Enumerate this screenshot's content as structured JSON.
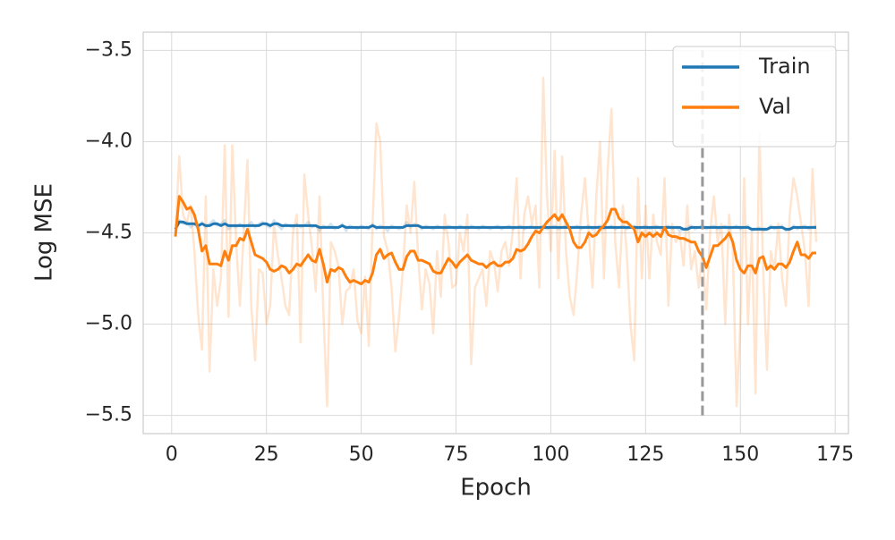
{
  "chart_data": {
    "type": "line",
    "xlabel": "Epoch",
    "ylabel": "Log MSE",
    "xlim": [
      -7.5,
      178.5
    ],
    "ylim": [
      -5.6,
      -3.4
    ],
    "xticks": [
      0,
      25,
      50,
      75,
      100,
      125,
      150,
      175
    ],
    "yticks": [
      {
        "value": -5.5,
        "label": "−5.5"
      },
      {
        "value": -5.0,
        "label": "−5.0"
      },
      {
        "value": -4.5,
        "label": "−4.5"
      },
      {
        "value": -4.0,
        "label": "−4.0"
      },
      {
        "value": -3.5,
        "label": "−3.5"
      }
    ],
    "grid": true,
    "legend": "upper right",
    "raw_alpha": 0.2,
    "vline": {
      "x": 140,
      "ymin": -5.5,
      "ymax": -3.5,
      "color": "#999999"
    },
    "x": [
      1,
      2,
      3,
      4,
      5,
      6,
      7,
      8,
      9,
      10,
      11,
      12,
      13,
      14,
      15,
      16,
      17,
      18,
      19,
      20,
      21,
      22,
      23,
      24,
      25,
      26,
      27,
      28,
      29,
      30,
      31,
      32,
      33,
      34,
      35,
      36,
      37,
      38,
      39,
      40,
      41,
      42,
      43,
      44,
      45,
      46,
      47,
      48,
      49,
      50,
      51,
      52,
      53,
      54,
      55,
      56,
      57,
      58,
      59,
      60,
      61,
      62,
      63,
      64,
      65,
      66,
      67,
      68,
      69,
      70,
      71,
      72,
      73,
      74,
      75,
      76,
      77,
      78,
      79,
      80,
      81,
      82,
      83,
      84,
      85,
      86,
      87,
      88,
      89,
      90,
      91,
      92,
      93,
      94,
      95,
      96,
      97,
      98,
      99,
      100,
      101,
      102,
      103,
      104,
      105,
      106,
      107,
      108,
      109,
      110,
      111,
      112,
      113,
      114,
      115,
      116,
      117,
      118,
      119,
      120,
      121,
      122,
      123,
      124,
      125,
      126,
      127,
      128,
      129,
      130,
      131,
      132,
      133,
      134,
      135,
      136,
      137,
      138,
      139,
      140,
      141,
      142,
      143,
      144,
      145,
      146,
      147,
      148,
      149,
      150,
      151,
      152,
      153,
      154,
      155,
      156,
      157,
      158,
      159,
      160,
      161,
      162,
      163,
      164,
      165,
      166,
      167,
      168,
      169,
      170
    ],
    "series": [
      {
        "name": "Train",
        "color": "#1f77b4",
        "values": [
          -4.48,
          -4.44,
          -4.44,
          -4.45,
          -4.45,
          -4.45,
          -4.46,
          -4.45,
          -4.46,
          -4.46,
          -4.45,
          -4.45,
          -4.46,
          -4.45,
          -4.46,
          -4.46,
          -4.46,
          -4.46,
          -4.46,
          -4.46,
          -4.46,
          -4.46,
          -4.46,
          -4.45,
          -4.45,
          -4.46,
          -4.45,
          -4.45,
          -4.46,
          -4.46,
          -4.46,
          -4.46,
          -4.46,
          -4.46,
          -4.46,
          -4.46,
          -4.46,
          -4.46,
          -4.47,
          -4.47,
          -4.47,
          -4.47,
          -4.47,
          -4.47,
          -4.46,
          -4.47,
          -4.47,
          -4.47,
          -4.47,
          -4.47,
          -4.47,
          -4.47,
          -4.46,
          -4.47,
          -4.47,
          -4.47,
          -4.47,
          -4.47,
          -4.47,
          -4.47,
          -4.47,
          -4.46,
          -4.46,
          -4.46,
          -4.46,
          -4.47,
          -4.47,
          -4.47,
          -4.47,
          -4.47,
          -4.47,
          -4.47,
          -4.47,
          -4.47,
          -4.47,
          -4.47,
          -4.47,
          -4.47,
          -4.47,
          -4.47,
          -4.47,
          -4.47,
          -4.47,
          -4.47,
          -4.47,
          -4.47,
          -4.47,
          -4.47,
          -4.47,
          -4.47,
          -4.47,
          -4.47,
          -4.47,
          -4.47,
          -4.47,
          -4.47,
          -4.47,
          -4.47,
          -4.47,
          -4.47,
          -4.47,
          -4.47,
          -4.47,
          -4.47,
          -4.47,
          -4.47,
          -4.47,
          -4.47,
          -4.47,
          -4.47,
          -4.47,
          -4.47,
          -4.47,
          -4.47,
          -4.47,
          -4.47,
          -4.47,
          -4.47,
          -4.47,
          -4.47,
          -4.47,
          -4.47,
          -4.47,
          -4.47,
          -4.47,
          -4.47,
          -4.47,
          -4.47,
          -4.47,
          -4.47,
          -4.47,
          -4.47,
          -4.47,
          -4.47,
          -4.48,
          -4.48,
          -4.47,
          -4.47,
          -4.47,
          -4.47,
          -4.47,
          -4.47,
          -4.47,
          -4.47,
          -4.47,
          -4.47,
          -4.47,
          -4.47,
          -4.47,
          -4.47,
          -4.47,
          -4.47,
          -4.48,
          -4.48,
          -4.48,
          -4.48,
          -4.48,
          -4.47,
          -4.47,
          -4.47,
          -4.47,
          -4.48,
          -4.48,
          -4.47,
          -4.47,
          -4.47,
          -4.47,
          -4.47,
          -4.47,
          -4.47
        ],
        "raw_values": [
          -4.46,
          -4.43,
          -4.45,
          -4.44,
          -4.47,
          -4.45,
          -4.48,
          -4.44,
          -4.47,
          -4.45,
          -4.43,
          -4.46,
          -4.45,
          -4.43,
          -4.48,
          -4.46,
          -4.47,
          -4.45,
          -4.47,
          -4.46,
          -4.44,
          -4.47,
          -4.45,
          -4.44,
          -4.46,
          -4.47,
          -4.43,
          -4.46,
          -4.48,
          -4.45,
          -4.46,
          -4.47,
          -4.45,
          -4.47,
          -4.46,
          -4.44,
          -4.47,
          -4.46,
          -4.49,
          -4.46,
          -4.47,
          -4.45,
          -4.48,
          -4.47,
          -4.45,
          -4.49,
          -4.46,
          -4.47,
          -4.48,
          -4.46,
          -4.47,
          -4.48,
          -4.45,
          -4.48,
          -4.46,
          -4.47,
          -4.49,
          -4.46,
          -4.47,
          -4.48,
          -4.47,
          -4.44,
          -4.47,
          -4.45,
          -4.46,
          -4.48,
          -4.46,
          -4.47,
          -4.48,
          -4.46,
          -4.47,
          -4.48,
          -4.46,
          -4.47,
          -4.48,
          -4.46,
          -4.47,
          -4.48,
          -4.46,
          -4.47,
          -4.48,
          -4.46,
          -4.47,
          -4.48,
          -4.47,
          -4.46,
          -4.48,
          -4.47,
          -4.46,
          -4.48,
          -4.47,
          -4.46,
          -4.48,
          -4.47,
          -4.46,
          -4.48,
          -4.47,
          -4.46,
          -4.48,
          -4.47,
          -4.46,
          -4.48,
          -4.47,
          -4.46,
          -4.48,
          -4.47,
          -4.46,
          -4.48,
          -4.47,
          -4.46,
          -4.48,
          -4.47,
          -4.46,
          -4.48,
          -4.47,
          -4.46,
          -4.48,
          -4.47,
          -4.46,
          -4.48,
          -4.47,
          -4.46,
          -4.48,
          -4.47,
          -4.46,
          -4.48,
          -4.47,
          -4.46,
          -4.48,
          -4.47,
          -4.46,
          -4.48,
          -4.47,
          -4.49,
          -4.48,
          -4.47,
          -4.46,
          -4.48,
          -4.47,
          -4.46,
          -4.48,
          -4.47,
          -4.46,
          -4.48,
          -4.47,
          -4.46,
          -4.48,
          -4.47,
          -4.46,
          -4.48,
          -4.47,
          -4.46,
          -4.49,
          -4.48,
          -4.47,
          -4.49,
          -4.48,
          -4.46,
          -4.48,
          -4.47,
          -4.46,
          -4.49,
          -4.48,
          -4.46,
          -4.48,
          -4.47,
          -4.46,
          -4.48,
          -4.47,
          -4.46
        ]
      },
      {
        "name": "Val",
        "color": "#ff7f0e",
        "values": [
          -4.52,
          -4.3,
          -4.33,
          -4.37,
          -4.36,
          -4.4,
          -4.48,
          -4.6,
          -4.57,
          -4.67,
          -4.67,
          -4.67,
          -4.68,
          -4.6,
          -4.65,
          -4.57,
          -4.57,
          -4.53,
          -4.54,
          -4.48,
          -4.55,
          -4.62,
          -4.63,
          -4.64,
          -4.66,
          -4.7,
          -4.71,
          -4.7,
          -4.68,
          -4.69,
          -4.72,
          -4.7,
          -4.67,
          -4.68,
          -4.65,
          -4.62,
          -4.65,
          -4.66,
          -4.59,
          -4.67,
          -4.77,
          -4.7,
          -4.71,
          -4.69,
          -4.7,
          -4.74,
          -4.77,
          -4.76,
          -4.77,
          -4.78,
          -4.76,
          -4.77,
          -4.72,
          -4.62,
          -4.59,
          -4.64,
          -4.62,
          -4.61,
          -4.66,
          -4.7,
          -4.7,
          -4.63,
          -4.6,
          -4.6,
          -4.65,
          -4.65,
          -4.66,
          -4.67,
          -4.71,
          -4.72,
          -4.72,
          -4.68,
          -4.64,
          -4.66,
          -4.69,
          -4.66,
          -4.64,
          -4.62,
          -4.65,
          -4.66,
          -4.67,
          -4.67,
          -4.69,
          -4.67,
          -4.66,
          -4.68,
          -4.68,
          -4.66,
          -4.66,
          -4.64,
          -4.59,
          -4.6,
          -4.59,
          -4.56,
          -4.52,
          -4.49,
          -4.5,
          -4.47,
          -4.44,
          -4.42,
          -4.4,
          -4.43,
          -4.4,
          -4.44,
          -4.48,
          -4.55,
          -4.58,
          -4.58,
          -4.55,
          -4.5,
          -4.52,
          -4.51,
          -4.48,
          -4.46,
          -4.43,
          -4.37,
          -4.37,
          -4.42,
          -4.44,
          -4.44,
          -4.46,
          -4.48,
          -4.55,
          -4.5,
          -4.52,
          -4.5,
          -4.52,
          -4.5,
          -4.52,
          -4.47,
          -4.51,
          -4.52,
          -4.52,
          -4.53,
          -4.53,
          -4.54,
          -4.55,
          -4.55,
          -4.6,
          -4.63,
          -4.69,
          -4.63,
          -4.57,
          -4.57,
          -4.55,
          -4.53,
          -4.5,
          -4.55,
          -4.65,
          -4.7,
          -4.72,
          -4.68,
          -4.68,
          -4.72,
          -4.64,
          -4.63,
          -4.7,
          -4.68,
          -4.7,
          -4.67,
          -4.67,
          -4.69,
          -4.66,
          -4.6,
          -4.55,
          -4.62,
          -4.62,
          -4.64,
          -4.61,
          -4.61
        ],
        "raw_values": [
          -4.5,
          -4.08,
          -4.4,
          -4.45,
          -4.35,
          -4.6,
          -4.95,
          -5.14,
          -4.3,
          -5.26,
          -4.7,
          -4.9,
          -4.75,
          -4.02,
          -4.96,
          -4.02,
          -4.55,
          -4.9,
          -4.5,
          -4.1,
          -4.9,
          -5.2,
          -4.7,
          -4.72,
          -5.0,
          -4.9,
          -4.45,
          -4.62,
          -4.75,
          -4.9,
          -4.95,
          -4.5,
          -4.4,
          -5.1,
          -4.18,
          -4.4,
          -4.58,
          -4.82,
          -4.3,
          -4.92,
          -5.45,
          -4.55,
          -4.6,
          -4.68,
          -5.0,
          -4.82,
          -4.8,
          -4.7,
          -4.98,
          -5.05,
          -4.74,
          -5.12,
          -4.45,
          -3.9,
          -4.0,
          -4.52,
          -4.6,
          -4.8,
          -5.15,
          -4.95,
          -4.7,
          -4.35,
          -4.5,
          -4.22,
          -4.63,
          -4.92,
          -4.7,
          -4.78,
          -5.05,
          -4.6,
          -4.85,
          -4.4,
          -4.55,
          -4.8,
          -4.78,
          -4.5,
          -4.6,
          -4.4,
          -5.22,
          -4.8,
          -4.75,
          -4.7,
          -4.9,
          -4.6,
          -4.66,
          -4.82,
          -4.6,
          -4.55,
          -4.68,
          -4.48,
          -4.2,
          -4.75,
          -4.4,
          -4.3,
          -4.45,
          -4.35,
          -4.8,
          -3.65,
          -4.3,
          -4.6,
          -4.05,
          -4.75,
          -4.08,
          -4.6,
          -4.85,
          -4.95,
          -4.7,
          -4.4,
          -4.2,
          -4.5,
          -4.8,
          -4.3,
          -4.0,
          -4.75,
          -4.15,
          -3.82,
          -4.55,
          -4.8,
          -4.35,
          -4.6,
          -5.0,
          -5.2,
          -4.2,
          -4.75,
          -4.35,
          -4.75,
          -4.4,
          -4.55,
          -4.62,
          -4.2,
          -4.9,
          -4.45,
          -4.55,
          -4.5,
          -4.68,
          -4.35,
          -4.7,
          -4.6,
          -4.8,
          -4.6,
          -4.92,
          -4.5,
          -4.3,
          -4.55,
          -4.45,
          -5.0,
          -4.4,
          -4.6,
          -5.45,
          -5.0,
          -4.2,
          -5.0,
          -4.5,
          -5.38,
          -3.95,
          -4.7,
          -5.25,
          -4.6,
          -4.7,
          -4.45,
          -4.75,
          -4.9,
          -4.4,
          -4.2,
          -4.3,
          -4.45,
          -4.6,
          -4.9,
          -4.15,
          -4.55
        ]
      }
    ]
  }
}
